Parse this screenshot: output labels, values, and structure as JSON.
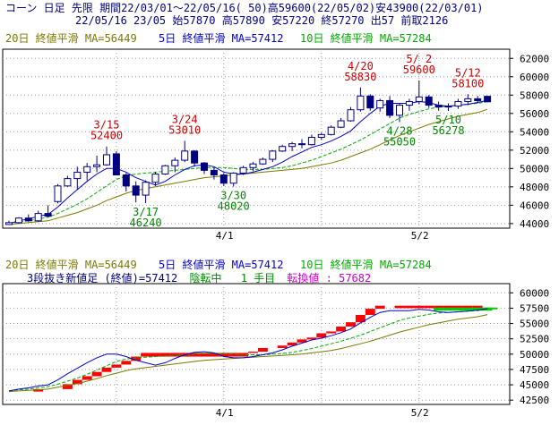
{
  "header": {
    "line1": "コーン 日足 先限 期間22/03/01～22/05/16( 50)高59600(22/05/02)安43900(22/03/01)",
    "line2": "22/05/16 23/05 始57870 高57890 安57220 終57270 出57 前取2126"
  },
  "legend": {
    "ma20": "20日 終値平滑 MA=56449",
    "ma5": "5日 終値平滑 MA=57412",
    "ma10": "10日 終値平滑 MA=57284",
    "info_prefix": "3段抜き新値足 (終値)=57412",
    "info_state": "陰転中",
    "info_count": "1 手目",
    "info_switch": "転換値 : 57682"
  },
  "colors": {
    "ma20": "#7a7a00",
    "ma5": "#0000cc",
    "ma10": "#00aa00",
    "high_label": "#cc0000",
    "low_label": "#008800",
    "up_box": "#ff0000",
    "down_box": "#00cc00"
  },
  "chart_data": [
    {
      "type": "candlestick",
      "x_ticks": [
        "4/1",
        "5/2"
      ],
      "ylim": [
        43500,
        63000
      ],
      "y_ticks": [
        44000,
        46000,
        48000,
        50000,
        52000,
        54000,
        56000,
        58000,
        60000,
        62000
      ],
      "ohlc": [
        [
          43900,
          44300,
          43900,
          44100
        ],
        [
          44100,
          44700,
          44000,
          44600
        ],
        [
          44600,
          45000,
          44200,
          44300
        ],
        [
          44300,
          45400,
          44200,
          45100
        ],
        [
          45100,
          46000,
          44700,
          44800
        ],
        [
          46400,
          48300,
          46200,
          48100
        ],
        [
          48100,
          49200,
          48000,
          48900
        ],
        [
          48900,
          50200,
          47700,
          49600
        ],
        [
          49600,
          50600,
          48700,
          50200
        ],
        [
          50200,
          51400,
          49600,
          50400
        ],
        [
          50400,
          52400,
          50300,
          51500
        ],
        [
          51600,
          51900,
          49300,
          49300
        ],
        [
          49300,
          49500,
          47500,
          48100
        ],
        [
          48100,
          48600,
          46300,
          47100
        ],
        [
          47100,
          48700,
          46240,
          48500
        ],
        [
          48500,
          49600,
          48100,
          49400
        ],
        [
          49400,
          50400,
          49300,
          50300
        ],
        [
          50300,
          51200,
          49600,
          50900
        ],
        [
          50900,
          53010,
          50700,
          51900
        ],
        [
          51900,
          52000,
          50200,
          50600
        ],
        [
          50600,
          50700,
          49400,
          49800
        ],
        [
          49800,
          50100,
          48800,
          49300
        ],
        [
          49300,
          49500,
          48100,
          48400
        ],
        [
          48400,
          49600,
          48020,
          49500
        ],
        [
          49500,
          50300,
          49300,
          50100
        ],
        [
          50100,
          50700,
          49700,
          50500
        ],
        [
          50500,
          51200,
          50400,
          51000
        ],
        [
          51000,
          52000,
          50700,
          51900
        ],
        [
          51900,
          52600,
          51800,
          52400
        ],
        [
          52400,
          52900,
          51900,
          52700
        ],
        [
          52700,
          53200,
          52200,
          52600
        ],
        [
          52600,
          53700,
          52500,
          53400
        ],
        [
          53400,
          53900,
          53100,
          53700
        ],
        [
          53700,
          54700,
          53600,
          54500
        ],
        [
          54500,
          55500,
          54400,
          55200
        ],
        [
          55200,
          56700,
          55100,
          56400
        ],
        [
          56400,
          58830,
          56200,
          57900
        ],
        [
          57900,
          58100,
          56300,
          56600
        ],
        [
          56600,
          57600,
          56200,
          57400
        ],
        [
          57400,
          57900,
          55500,
          55800
        ],
        [
          55800,
          57100,
          55050,
          56900
        ],
        [
          56900,
          57600,
          56300,
          57300
        ],
        [
          57300,
          59600,
          57000,
          57800
        ],
        [
          57800,
          58000,
          56600,
          56900
        ],
        [
          56900,
          57300,
          56300,
          56700
        ],
        [
          56700,
          57100,
          56278,
          56800
        ],
        [
          56800,
          57600,
          56500,
          57300
        ],
        [
          57300,
          58100,
          56900,
          57600
        ],
        [
          57600,
          57900,
          57100,
          57400
        ],
        [
          57870,
          57890,
          57220,
          57270
        ]
      ],
      "ma5": [
        44000,
        44300,
        44500,
        44800,
        45000,
        45800,
        46800,
        47700,
        48600,
        49400,
        50000,
        50000,
        49600,
        49000,
        48600,
        48200,
        48600,
        49300,
        49900,
        50300,
        50400,
        50200,
        49600,
        49400,
        49400,
        49600,
        49900,
        50200,
        50700,
        51300,
        51800,
        52300,
        52600,
        53000,
        53500,
        54100,
        55100,
        56000,
        56800,
        57100,
        57100,
        57100,
        57300,
        57200,
        56900,
        56800,
        56900,
        57000,
        57200,
        57412
      ],
      "ma10": [
        44000,
        44200,
        44300,
        44500,
        44700,
        45100,
        45600,
        46100,
        46700,
        47400,
        48100,
        48800,
        49200,
        49400,
        49500,
        49600,
        49700,
        49800,
        49900,
        50000,
        50100,
        50100,
        50100,
        50000,
        49900,
        49900,
        49900,
        50000,
        50100,
        50300,
        50600,
        50900,
        51300,
        51700,
        52100,
        52600,
        53100,
        53700,
        54300,
        54900,
        55500,
        55900,
        56200,
        56500,
        56700,
        56800,
        56900,
        57000,
        57100,
        57284
      ],
      "ma20": [
        43900,
        44000,
        44100,
        44200,
        44300,
        44600,
        44900,
        45200,
        45600,
        46000,
        46500,
        46900,
        47300,
        47600,
        47800,
        48000,
        48200,
        48400,
        48600,
        48800,
        49000,
        49100,
        49200,
        49300,
        49400,
        49500,
        49600,
        49700,
        49800,
        49900,
        50000,
        50200,
        50400,
        50600,
        50900,
        51300,
        51700,
        52100,
        52600,
        53100,
        53600,
        54000,
        54400,
        54800,
        55100,
        55400,
        55700,
        55900,
        56100,
        56449
      ],
      "annotations": [
        {
          "label": "3/15",
          "value": "52400",
          "i": 10,
          "y": 52400,
          "kind": "high"
        },
        {
          "label": "3/24",
          "value": "53010",
          "i": 18,
          "y": 53010,
          "kind": "high"
        },
        {
          "label": "4/20",
          "value": "58830",
          "i": 36,
          "y": 58830,
          "kind": "high"
        },
        {
          "label": "5/ 2",
          "value": "59600",
          "i": 42,
          "y": 59600,
          "kind": "high"
        },
        {
          "label": "5/12",
          "value": "58100",
          "i": 47,
          "y": 58100,
          "kind": "high"
        },
        {
          "label": "3/17",
          "value": "46240",
          "i": 14,
          "y": 46240,
          "kind": "low"
        },
        {
          "label": "3/30",
          "value": "48020",
          "i": 23,
          "y": 48020,
          "kind": "low"
        },
        {
          "label": "4/28",
          "value": "55050",
          "i": 40,
          "y": 55050,
          "kind": "low"
        },
        {
          "label": "5/10",
          "value": "56278",
          "i": 45,
          "y": 56278,
          "kind": "low"
        }
      ]
    },
    {
      "type": "three-line-break",
      "x_ticks": [
        "4/1",
        "5/2"
      ],
      "ylim": [
        41800,
        61500
      ],
      "y_ticks": [
        42500,
        45000,
        47500,
        50000,
        52500,
        55000,
        57500,
        60000
      ],
      "up_boxes": [
        [
          3,
          43900,
          44300
        ],
        [
          6,
          44300,
          45100
        ],
        [
          7,
          45100,
          45800
        ],
        [
          8,
          45800,
          46400
        ],
        [
          9,
          46400,
          47100
        ],
        [
          10,
          47100,
          47800
        ],
        [
          11,
          47800,
          48300
        ],
        [
          12,
          48300,
          48900
        ],
        [
          13,
          48900,
          49600
        ],
        [
          14,
          49600,
          50200
        ],
        [
          25,
          50200,
          50400
        ],
        [
          26,
          50400,
          51000
        ],
        [
          28,
          51000,
          51400
        ],
        [
          29,
          51400,
          51900
        ],
        [
          30,
          51900,
          52400
        ],
        [
          31,
          52400,
          52700
        ],
        [
          32,
          52700,
          53400
        ],
        [
          33,
          53400,
          53700
        ],
        [
          34,
          53700,
          54500
        ],
        [
          35,
          54500,
          55200
        ],
        [
          36,
          55200,
          56400
        ],
        [
          37,
          56400,
          57400
        ],
        [
          38,
          57400,
          57900
        ],
        [
          40,
          57500,
          57900
        ],
        [
          41,
          57500,
          57900
        ],
        [
          42,
          57500,
          57900
        ],
        [
          43,
          57500,
          57900
        ],
        [
          44,
          57500,
          57900
        ],
        [
          45,
          57500,
          57900
        ],
        [
          46,
          57500,
          57900
        ],
        [
          47,
          57500,
          57900
        ],
        [
          48,
          57500,
          57900
        ]
      ],
      "down_boxes": [
        [
          49,
          57300,
          57600
        ]
      ]
    }
  ]
}
